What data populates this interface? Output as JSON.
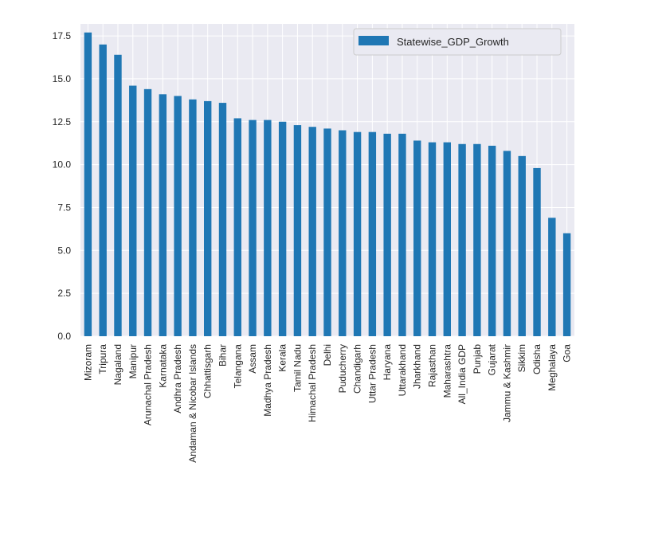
{
  "chart_data": {
    "type": "bar",
    "categories": [
      "Mizoram",
      "Tripura",
      "Nagaland",
      "Manipur",
      "Arunachal Pradesh",
      "Karnataka",
      "Andhra Pradesh",
      "Andaman & Nicobar Islands",
      "Chhattisgarh",
      "Bihar",
      "Telangana",
      "Assam",
      "Madhya Pradesh",
      "Kerala",
      "Tamil Nadu",
      "Himachal Pradesh",
      "Delhi",
      "Puducherry",
      "Chandigarh",
      "Uttar Pradesh",
      "Haryana",
      "Uttarakhand",
      "Jharkhand",
      "Rajasthan",
      "Maharashtra",
      "All_India GDP",
      "Punjab",
      "Gujarat",
      "Jammu & Kashmir",
      "Sikkim",
      "Odisha",
      "Meghalaya",
      "Goa"
    ],
    "series": [
      {
        "name": "Statewise_GDP_Growth",
        "color": "#1f77b4",
        "values": [
          17.7,
          17.0,
          16.4,
          14.6,
          14.4,
          14.1,
          14.0,
          13.8,
          13.7,
          13.6,
          12.7,
          12.6,
          12.6,
          12.5,
          12.3,
          12.2,
          12.1,
          12.0,
          11.9,
          11.9,
          11.8,
          11.8,
          11.4,
          11.3,
          11.3,
          11.2,
          11.2,
          11.1,
          10.8,
          10.5,
          9.8,
          6.9,
          6.0
        ]
      }
    ],
    "yticks": [
      "0.0",
      "2.5",
      "5.0",
      "7.5",
      "10.0",
      "12.5",
      "15.0",
      "17.5"
    ],
    "ylim": [
      0,
      18.2
    ],
    "grid": true,
    "legend": "top-right"
  },
  "style": {
    "plot_bg": "#eaeaf2",
    "grid_color": "#ffffff",
    "text_color": "#262626"
  }
}
